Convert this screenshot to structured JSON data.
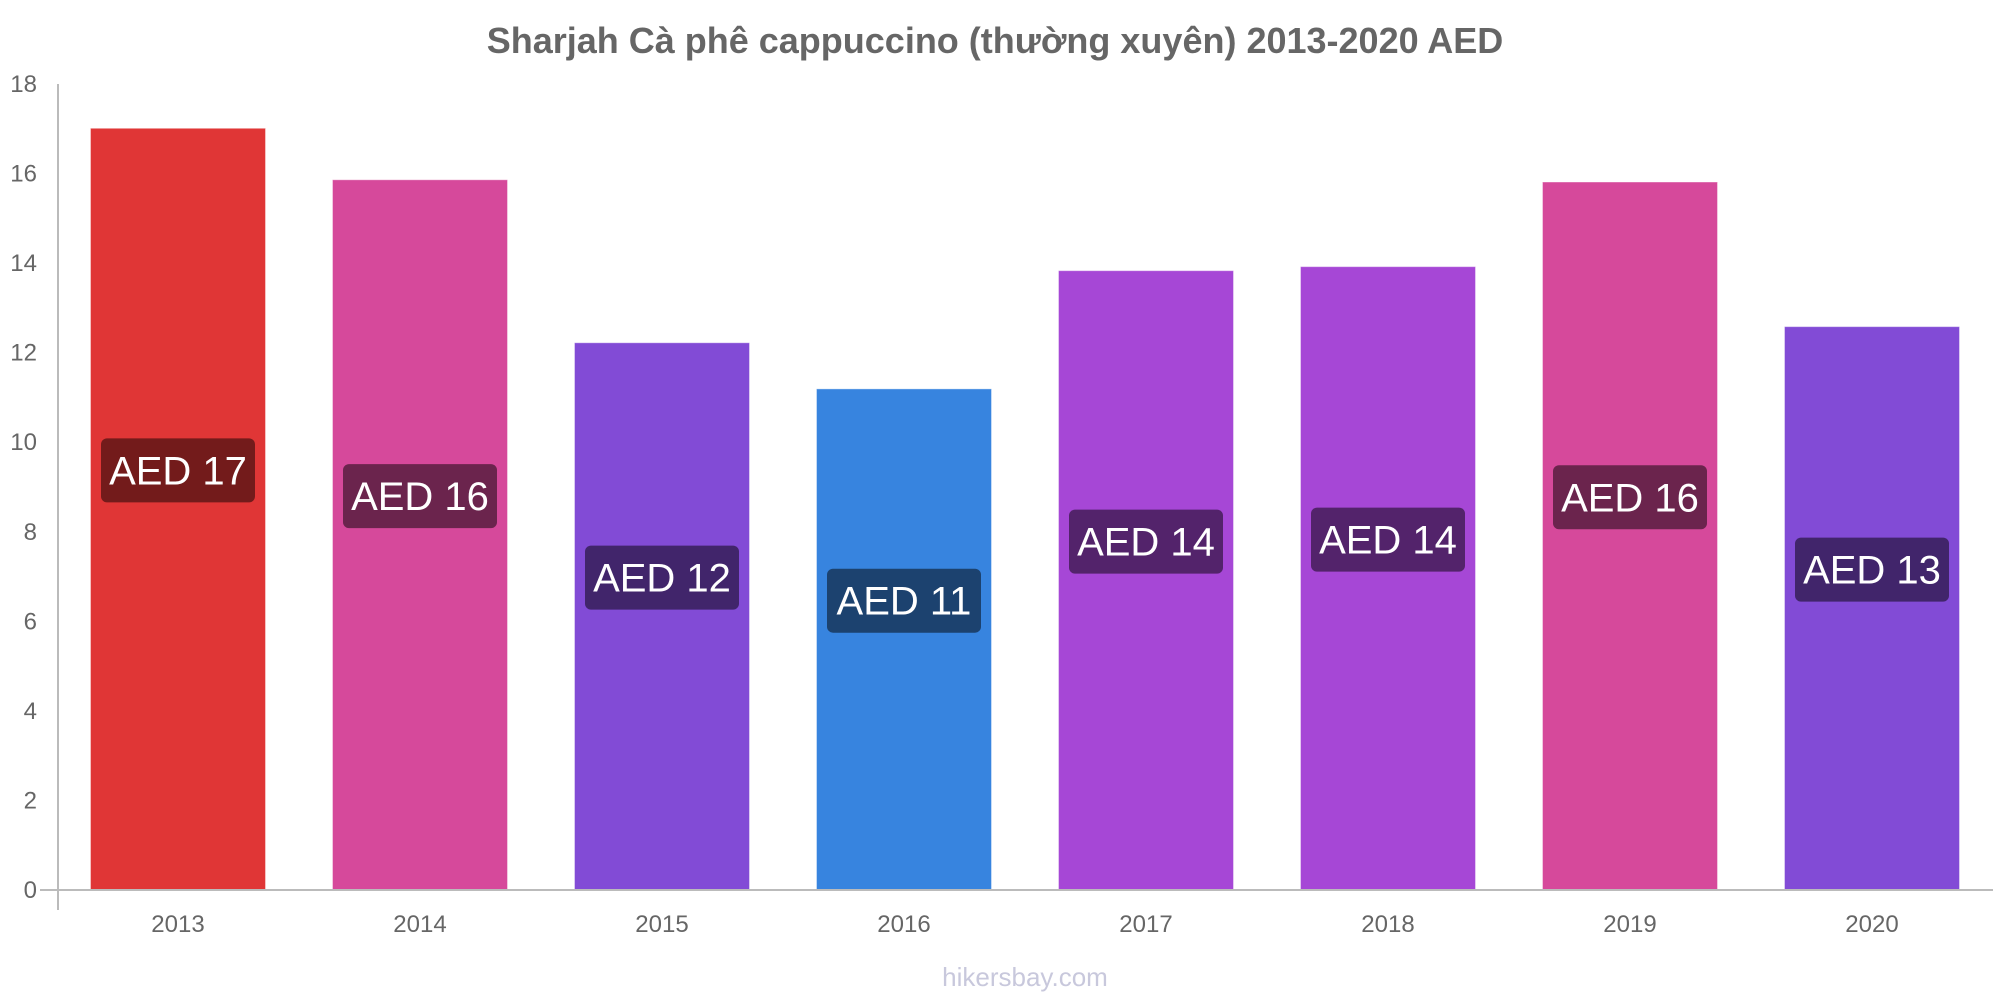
{
  "chart_data": {
    "type": "bar",
    "title": "Sharjah Cà phê cappuccino (thường xuyên) 2013-2020 AED",
    "xlabel": "",
    "ylabel": "",
    "categories": [
      "2013",
      "2014",
      "2015",
      "2016",
      "2017",
      "2018",
      "2019",
      "2020"
    ],
    "values": [
      17.0,
      15.85,
      12.21,
      11.18,
      13.82,
      13.91,
      15.8,
      12.57
    ],
    "data_labels": [
      "AED 17",
      "AED 16",
      "AED 12",
      "AED 11",
      "AED 14",
      "AED 14",
      "AED 16",
      "AED 13"
    ],
    "bar_colors": [
      "#e03636",
      "#d6499b",
      "#824bd6",
      "#3784df",
      "#a647d6",
      "#a647d6",
      "#d6499b",
      "#824bd6"
    ],
    "label_colors": [
      "#731b1b",
      "#6b244d",
      "#41256b",
      "#1c426f",
      "#53236b",
      "#53236b",
      "#6b244d",
      "#41256b"
    ],
    "ylim": [
      0,
      18
    ],
    "yticks": [
      "0",
      "2",
      "4",
      "6",
      "8",
      "10",
      "12",
      "14",
      "16",
      "18"
    ],
    "grid": false,
    "legend": "none"
  },
  "watermark": "hikersbay.com"
}
